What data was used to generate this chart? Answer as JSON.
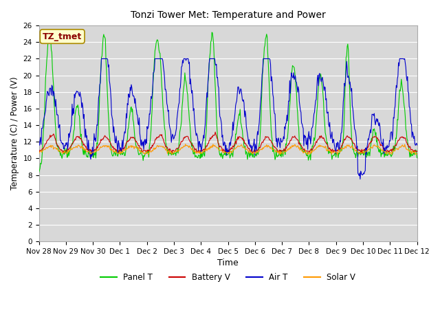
{
  "title": "Tonzi Tower Met: Temperature and Power",
  "xlabel": "Time",
  "ylabel": "Temperature (C) / Power (V)",
  "ylim": [
    0,
    26
  ],
  "yticks": [
    0,
    2,
    4,
    6,
    8,
    10,
    12,
    14,
    16,
    18,
    20,
    22,
    24,
    26
  ],
  "x_tick_labels": [
    "Nov 28",
    "Nov 29",
    "Nov 30",
    "Dec 1",
    "Dec 2",
    "Dec 3",
    "Dec 4",
    "Dec 5",
    "Dec 6",
    "Dec 7",
    "Dec 8",
    "Dec 9",
    "Dec 10",
    "Dec 11",
    "Dec 12"
  ],
  "colors": {
    "panel_t": "#00cc00",
    "battery_v": "#cc0000",
    "air_t": "#0000cc",
    "solar_v": "#ff9900"
  },
  "bg_color": "#d8d8d8",
  "legend_labels": [
    "Panel T",
    "Battery V",
    "Air T",
    "Solar V"
  ],
  "annotation_label": "TZ_tmet",
  "annotation_color": "#8b0000",
  "annotation_bg": "#ffffcc",
  "n_days": 14,
  "pts_per_day": 48,
  "panel_baseline": 10.5,
  "air_baseline": 11.0,
  "battery_baseline": 10.8,
  "solar_baseline": 10.5,
  "peak_heights_panel": [
    13.5,
    6.0,
    14.5,
    5.5,
    13.0,
    9.0,
    14.5,
    5.0,
    14.5,
    11.0,
    9.5,
    13.5,
    3.0,
    8.5
  ],
  "peak_heights_air": [
    5.0,
    5.0,
    9.0,
    5.0,
    8.0,
    8.0,
    9.0,
    5.0,
    9.0,
    6.0,
    6.0,
    7.0,
    3.0,
    8.0
  ],
  "peak_widths": [
    0.12,
    0.1,
    0.1,
    0.1,
    0.14,
    0.12,
    0.1,
    0.1,
    0.1,
    0.12,
    0.12,
    0.08,
    0.08,
    0.12
  ]
}
